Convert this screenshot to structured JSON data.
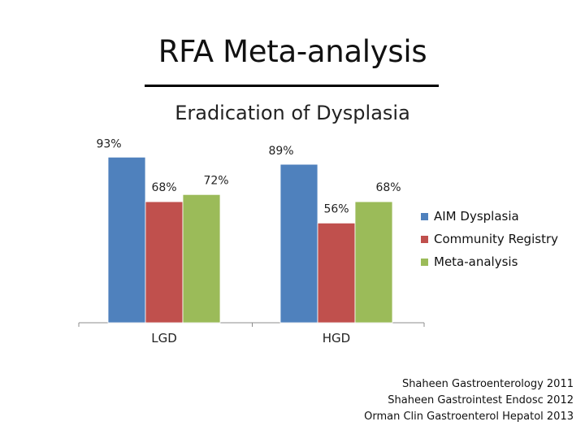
{
  "slide": {
    "title": "RFA Meta-analysis"
  },
  "chart_data": {
    "type": "bar",
    "title": "Eradication of Dysplasia",
    "categories": [
      "LGD",
      "HGD"
    ],
    "series": [
      {
        "name": "AIM Dysplasia",
        "color": "#4F81BD",
        "values": [
          93,
          89
        ],
        "labels": [
          "93%",
          "89%"
        ]
      },
      {
        "name": "Community Registry",
        "color": "#C0504D",
        "values": [
          68,
          56
        ],
        "labels": [
          "68%",
          "56%"
        ]
      },
      {
        "name": "Meta-analysis",
        "color": "#9BBB59",
        "values": [
          72,
          68
        ],
        "labels": [
          "72%",
          "68%"
        ]
      }
    ],
    "xlabel": "",
    "ylabel": "",
    "ylim": [
      0,
      100
    ],
    "grid": false,
    "legend_position": "right",
    "y_axis_visible": false
  },
  "references": [
    "Shaheen Gastroenterology 2011",
    "Shaheen Gastrointest Endosc 2012",
    "Orman Clin Gastroenterol Hepatol 2013"
  ]
}
